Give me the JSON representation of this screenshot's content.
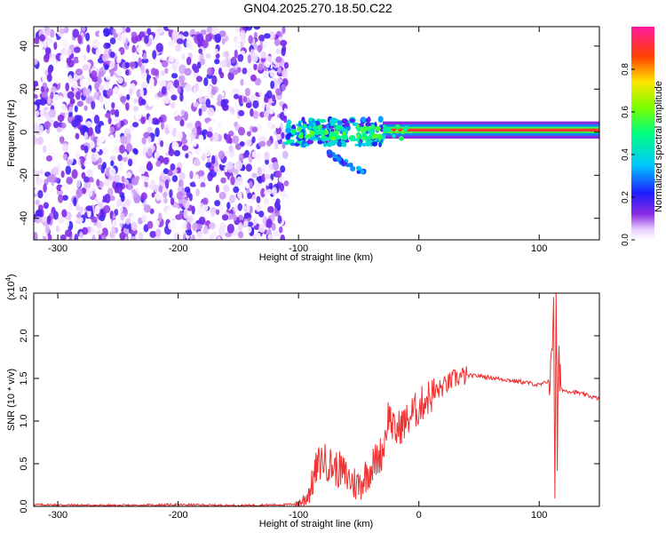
{
  "title": "GN04.2025.270.18.50.C22",
  "colors": {
    "snr_line": "#f03232",
    "axis": "#000000",
    "background": "#ffffff"
  },
  "chart_data": [
    {
      "type": "heatmap",
      "xlabel": "Height of straight line (km)",
      "ylabel": "Frequency (Hz)",
      "xlim": [
        -320,
        150
      ],
      "ylim": [
        -50,
        49
      ],
      "xticks": [
        -300,
        -200,
        -100,
        0,
        100
      ],
      "yticks": [
        -40,
        -20,
        0,
        20,
        40
      ],
      "xtick_labels": [
        "-300",
        "-200",
        "-100",
        "0",
        "100"
      ],
      "ytick_labels": [
        "-40",
        "-20",
        "0",
        "20",
        "40"
      ],
      "colormap": "rainbow (white-violet-blue-cyan-green-yellow-red-magenta)",
      "colorbar": {
        "label": "Normalized spectral amplitude",
        "range": [
          0,
          1
        ],
        "ticks": [
          "0.0",
          "0.2",
          "0.4",
          "0.6",
          "0.8"
        ],
        "tick_values": [
          0.0,
          0.2,
          0.4,
          0.6,
          0.8
        ]
      },
      "features": [
        {
          "region": "noise",
          "x_range": [
            -320,
            -110
          ],
          "y_range": [
            -50,
            49
          ],
          "amplitude": "0.0-0.2 scattered"
        },
        {
          "region": "onset",
          "x_range": [
            -110,
            -30
          ],
          "y_center": 0,
          "amplitude": "0.2-0.5 patchy"
        },
        {
          "region": "branch",
          "x_range": [
            -75,
            -45
          ],
          "y_range": [
            -19,
            -10
          ],
          "amplitude": "0.2-0.4"
        },
        {
          "region": "line",
          "x_range": [
            -30,
            150
          ],
          "y_center": 1,
          "amplitude": "0.8-1.0"
        }
      ]
    },
    {
      "type": "line",
      "xlabel": "Height of straight line (km)",
      "ylabel": "SNR (10 * v/v)",
      "y_multiplier": "(x10^4)",
      "y_multiplier_base": "(x10",
      "y_multiplier_exp": "4",
      "y_multiplier_close": ")",
      "xlim": [
        -320,
        150
      ],
      "ylim": [
        0,
        2.5
      ],
      "xticks": [
        -300,
        -200,
        -100,
        0,
        100
      ],
      "yticks": [
        0,
        0.5,
        1.0,
        1.5,
        2.0,
        2.5
      ],
      "xtick_labels": [
        "-300",
        "-200",
        "-100",
        "0",
        "100"
      ],
      "ytick_labels": [
        "0.0",
        "0.5",
        "1.0",
        "1.5",
        "2.0",
        "2.5"
      ],
      "series": [
        {
          "x": [
            -320,
            -250,
            -200,
            -150,
            -110,
            -100,
            -95,
            -90,
            -85,
            -80,
            -75,
            -70,
            -65,
            -60,
            -55,
            -50,
            -45,
            -40,
            -35,
            -30,
            -25,
            -20,
            -15,
            -10,
            -5,
            0,
            5,
            10,
            15,
            20,
            25,
            30,
            35,
            40,
            50,
            60,
            70,
            80,
            90,
            100,
            105,
            110,
            112,
            113,
            114,
            115,
            116,
            118,
            120,
            130,
            140,
            150
          ],
          "y": [
            0.02,
            0.01,
            0.02,
            0.01,
            0.02,
            0.03,
            0.08,
            0.2,
            0.45,
            0.55,
            0.5,
            0.45,
            0.42,
            0.35,
            0.28,
            0.25,
            0.35,
            0.45,
            0.55,
            0.65,
            1.1,
            0.85,
            0.95,
            1.0,
            1.1,
            1.15,
            1.25,
            1.3,
            1.35,
            1.4,
            1.45,
            1.5,
            1.52,
            1.53,
            1.53,
            1.51,
            1.49,
            1.47,
            1.45,
            1.42,
            1.45,
            1.5,
            2.5,
            0.25,
            2.3,
            0.6,
            1.6,
            1.4,
            1.36,
            1.34,
            1.3,
            1.26
          ]
        }
      ]
    }
  ]
}
